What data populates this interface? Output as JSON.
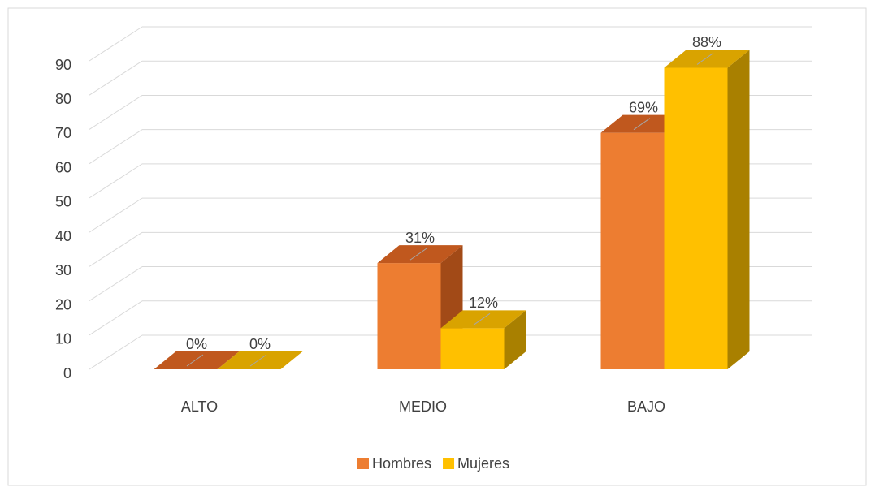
{
  "chart_data": {
    "type": "bar3d",
    "categories": [
      "ALTO",
      "MEDIO",
      "BAJO"
    ],
    "series": [
      {
        "name": "Hombres",
        "color": "#ED7D31",
        "top_color": "#C0581E",
        "side_color": "#A24A17",
        "values": [
          0,
          31,
          69
        ],
        "value_labels": [
          "0%",
          "31%",
          "69%"
        ]
      },
      {
        "name": "Mujeres",
        "color": "#FFC000",
        "top_color": "#D9A300",
        "side_color": "#A98000",
        "values": [
          0,
          12,
          88
        ],
        "value_labels": [
          "0%",
          "12%",
          "88%"
        ]
      }
    ],
    "ylim": [
      0,
      90
    ],
    "yticks": [
      0,
      10,
      20,
      30,
      40,
      50,
      60,
      70,
      80,
      90
    ],
    "grid": true,
    "legend": "bottom"
  }
}
